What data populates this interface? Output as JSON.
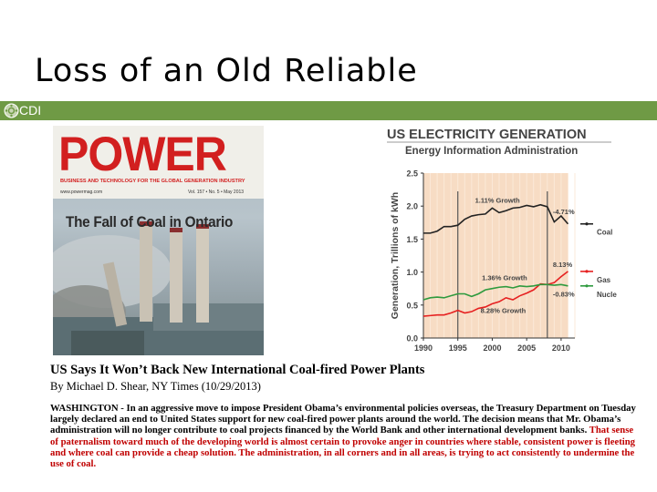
{
  "slide": {
    "title": "Loss of an Old Reliable",
    "brand": "CDI",
    "brand_color": "#6f9a45"
  },
  "cover": {
    "masthead": "POWER",
    "subtitle": "BUSINESS AND TECHNOLOGY FOR THE GLOBAL GENERATION INDUSTRY",
    "url": "www.powermag.com",
    "volume": "Vol. 157 • No. 5 • May 2013",
    "headline": "The Fall of Coal in Ontario",
    "masthead_color": "#d21f1f"
  },
  "chart_data": {
    "type": "line",
    "title": "US ELECTRICITY GENERATION",
    "subtitle": "Energy Information Administration",
    "xlabel": "",
    "ylabel": "Generation, Trillions of kWh",
    "xlim": [
      1990,
      2012
    ],
    "ylim": [
      0,
      2.5
    ],
    "xticks": [
      "1990",
      "1995",
      "2000",
      "2005",
      "2010"
    ],
    "yticks": [
      "0.0",
      "0.5",
      "1.0",
      "1.5",
      "2.0",
      "2.5"
    ],
    "grid": false,
    "legend_position": "right",
    "x": [
      1990,
      1991,
      1992,
      1993,
      1994,
      1995,
      1996,
      1997,
      1998,
      1999,
      2000,
      2001,
      2002,
      2003,
      2004,
      2005,
      2006,
      2007,
      2008,
      2009,
      2010,
      2011
    ],
    "series": [
      {
        "name": "Coal",
        "color": "#222222",
        "values": [
          1.59,
          1.59,
          1.62,
          1.69,
          1.69,
          1.71,
          1.8,
          1.85,
          1.87,
          1.88,
          1.97,
          1.9,
          1.93,
          1.97,
          1.98,
          2.01,
          1.99,
          2.02,
          1.99,
          1.76,
          1.85,
          1.73
        ]
      },
      {
        "name": "Gas",
        "color": "#e62020",
        "values": [
          0.33,
          0.34,
          0.35,
          0.35,
          0.38,
          0.42,
          0.38,
          0.4,
          0.45,
          0.47,
          0.52,
          0.55,
          0.61,
          0.58,
          0.64,
          0.68,
          0.73,
          0.82,
          0.81,
          0.84,
          0.93,
          1.01
        ]
      },
      {
        "name": "Nuclear",
        "color": "#2e9a3e",
        "values": [
          0.58,
          0.61,
          0.62,
          0.61,
          0.64,
          0.67,
          0.67,
          0.63,
          0.67,
          0.73,
          0.75,
          0.77,
          0.78,
          0.76,
          0.79,
          0.78,
          0.79,
          0.81,
          0.81,
          0.8,
          0.81,
          0.79
        ]
      }
    ],
    "annotations": [
      "1.11% Growth",
      "-4.71%",
      "1.36% Growth",
      "8.13%",
      "8.28% Growth",
      "-0.83%"
    ],
    "shaded_ranges": [
      [
        1990,
        2011
      ]
    ],
    "marker_lines": [
      1995,
      2008
    ]
  },
  "article": {
    "headline": "US Says It Won’t Back New International Coal-fired Power Plants",
    "byline": "By Michael D. Shear, NY Times (10/29/2013)",
    "body_black": "WASHINGTON - In an aggressive move to impose President Obama’s environmental policies overseas, the Treasury Department on Tuesday largely declared an end to United States support for new coal-fired power plants around the world. The decision means that Mr. Obama’s administration will no longer contribute to coal projects financed by the World Bank and other international development banks. ",
    "body_red": "That sense of paternalism toward much of the developing world is almost certain to provoke anger in countries where stable, consistent power is fleeting and where coal can provide a cheap solution. The administration, in all corners and in all areas, is trying to act consistently to undermine the use of coal.",
    "red_color": "#c00000"
  }
}
